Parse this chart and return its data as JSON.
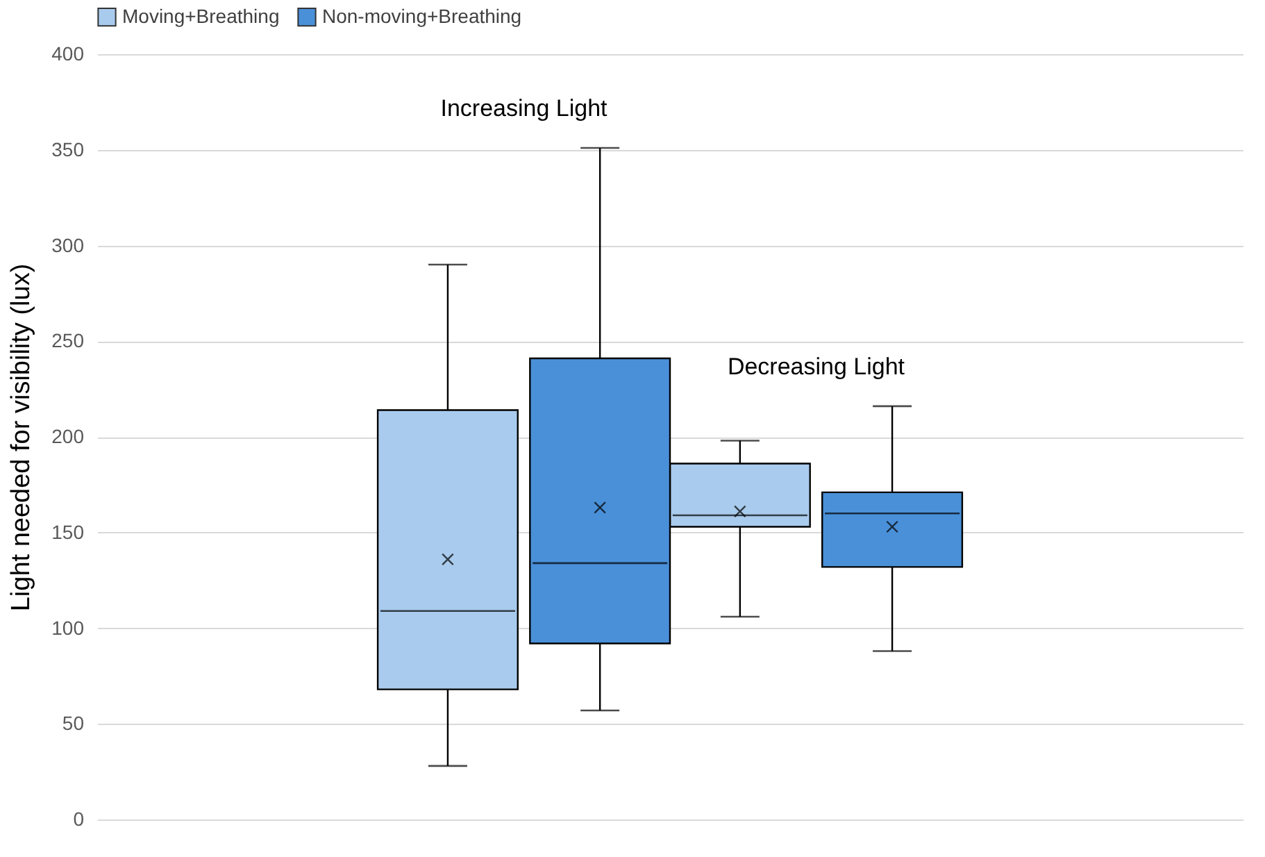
{
  "chart_data": {
    "type": "box",
    "ylabel": "Light needed for visibility (lux)",
    "categories": [
      null,
      null
    ],
    "series": [
      {
        "name": "Moving+Breathing",
        "color": "#a9cbed",
        "boxes": [
          {
            "low": 28,
            "q1": 68,
            "median": 109,
            "q3": 214,
            "high": 290,
            "mean": 136
          },
          {
            "low": 106,
            "q1": 153,
            "median": 159,
            "q3": 186,
            "high": 198,
            "mean": 161
          }
        ]
      },
      {
        "name": "Non-moving+Breathing",
        "color": "#4a90d9",
        "boxes": [
          {
            "low": 57,
            "q1": 92,
            "median": 134,
            "q3": 241,
            "high": 351,
            "mean": 163
          },
          {
            "low": 88,
            "q1": 132,
            "median": 160,
            "q3": 171,
            "high": 216,
            "mean": 153
          }
        ]
      }
    ],
    "annotations": [
      "Increasing Light",
      "Decreasing Light"
    ],
    "ylim": [
      0,
      400
    ],
    "yticks": [
      0,
      50,
      100,
      150,
      200,
      250,
      300,
      350,
      400
    ],
    "grid": "y",
    "legend": "top",
    "tick_labels": "y"
  }
}
